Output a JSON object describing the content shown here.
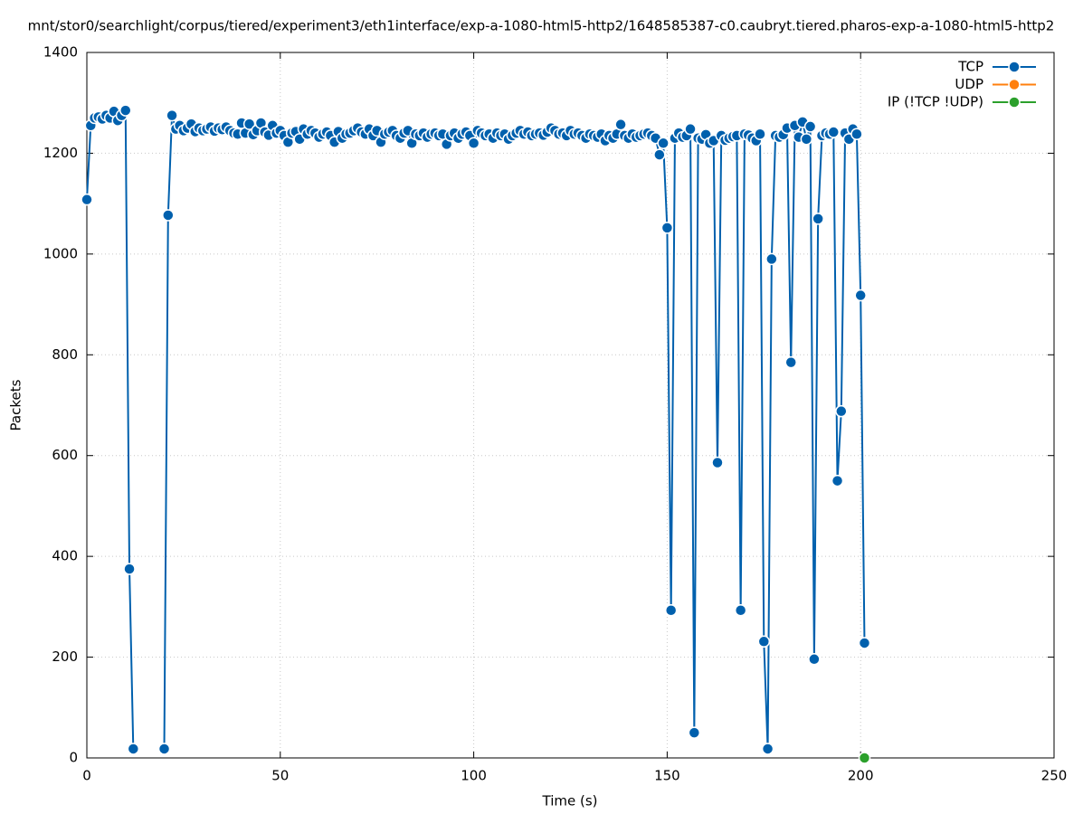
{
  "chart_data": {
    "type": "line",
    "title": "mnt/stor0/searchlight/corpus/tiered/experiment3/eth1interface/exp-a-1080-html5-http2/1648585387-c0.caubryt.tiered.pharos-exp-a-1080-html5-http2",
    "xlabel": "Time (s)",
    "ylabel": "Packets",
    "xlim": [
      0,
      250
    ],
    "xticks": [
      0,
      50,
      100,
      150,
      200,
      250
    ],
    "ylim": [
      0,
      1400
    ],
    "yticks": [
      0,
      200,
      400,
      600,
      800,
      1000,
      1200,
      1400
    ],
    "grid": true,
    "legend": "top-right",
    "series": [
      {
        "name": "TCP",
        "color": "#0060ad",
        "x": [
          0,
          1,
          2,
          3,
          4,
          5,
          6,
          7,
          8,
          9,
          10,
          11,
          12,
          13,
          14,
          15,
          16,
          17,
          18,
          19,
          20,
          21,
          22,
          23,
          24,
          25,
          26,
          27,
          28,
          29,
          30,
          31,
          32,
          33,
          34,
          35,
          36,
          37,
          38,
          39,
          40,
          41,
          42,
          43,
          44,
          45,
          46,
          47,
          48,
          49,
          50,
          51,
          52,
          53,
          54,
          55,
          56,
          57,
          58,
          59,
          60,
          61,
          62,
          63,
          64,
          65,
          66,
          67,
          68,
          69,
          70,
          71,
          72,
          73,
          74,
          75,
          76,
          77,
          78,
          79,
          80,
          81,
          82,
          83,
          84,
          85,
          86,
          87,
          88,
          89,
          90,
          91,
          92,
          93,
          94,
          95,
          96,
          97,
          98,
          99,
          100,
          101,
          102,
          103,
          104,
          105,
          106,
          107,
          108,
          109,
          110,
          111,
          112,
          113,
          114,
          115,
          116,
          117,
          118,
          119,
          120,
          121,
          122,
          123,
          124,
          125,
          126,
          127,
          128,
          129,
          130,
          131,
          132,
          133,
          134,
          135,
          136,
          137,
          138,
          139,
          140,
          141,
          142,
          143,
          144,
          145,
          146,
          147,
          148,
          149,
          150,
          151,
          152,
          153,
          154,
          155,
          156,
          157,
          158,
          159,
          160,
          161,
          162,
          163,
          164,
          165,
          166,
          167,
          168,
          169,
          170,
          171,
          172,
          173,
          174,
          175,
          176,
          177,
          178,
          179,
          180,
          181,
          182,
          183,
          184,
          185,
          186,
          187,
          188,
          189,
          190,
          191,
          192,
          193,
          194,
          195,
          196,
          197,
          198,
          199,
          200,
          201
        ],
        "values": [
          1108,
          1255,
          1270,
          1272,
          1268,
          1275,
          1270,
          1283,
          1265,
          1275,
          1285,
          375,
          18,
          null,
          null,
          null,
          null,
          null,
          null,
          null,
          18,
          1077,
          1275,
          1248,
          1255,
          1245,
          1250,
          1258,
          1243,
          1250,
          1245,
          1248,
          1252,
          1244,
          1250,
          1247,
          1252,
          1245,
          1240,
          1238,
          1260,
          1240,
          1258,
          1237,
          1245,
          1260,
          1242,
          1236,
          1255,
          1240,
          1245,
          1235,
          1222,
          1240,
          1243,
          1228,
          1248,
          1238,
          1245,
          1240,
          1232,
          1238,
          1242,
          1235,
          1222,
          1243,
          1230,
          1238,
          1240,
          1245,
          1250,
          1242,
          1238,
          1248,
          1235,
          1245,
          1222,
          1238,
          1242,
          1245,
          1235,
          1230,
          1240,
          1245,
          1220,
          1238,
          1235,
          1240,
          1232,
          1238,
          1240,
          1235,
          1238,
          1218,
          1235,
          1240,
          1230,
          1238,
          1242,
          1235,
          1220,
          1245,
          1240,
          1235,
          1238,
          1230,
          1240,
          1235,
          1238,
          1228,
          1235,
          1240,
          1245,
          1238,
          1242,
          1235,
          1238,
          1240,
          1236,
          1242,
          1250,
          1245,
          1238,
          1240,
          1235,
          1245,
          1238,
          1240,
          1235,
          1230,
          1238,
          1235,
          1232,
          1238,
          1225,
          1235,
          1230,
          1238,
          1257,
          1235,
          1230,
          1238,
          1232,
          1235,
          1238,
          1240,
          1235,
          1230,
          1197,
          1220,
          1052,
          293,
          1230,
          1240,
          1232,
          1235,
          1248,
          50,
          1230,
          1228,
          1237,
          1220,
          1225,
          586,
          1235,
          1226,
          1230,
          1233,
          1235,
          293,
          1238,
          1236,
          1230,
          1225,
          1238,
          231,
          18,
          990,
          1235,
          1232,
          1237,
          1250,
          785,
          1255,
          1232,
          1262,
          1228,
          1253,
          196,
          1070,
          1235,
          1240,
          1238,
          1242,
          550,
          688,
          1240,
          1228,
          1248,
          1238,
          918,
          228
        ]
      },
      {
        "name": "UDP",
        "color": "#ff7f0e",
        "x": [],
        "values": []
      },
      {
        "name": "IP (!TCP  !UDP)",
        "color": "#2ca02c",
        "x": [
          201
        ],
        "values": [
          0
        ]
      }
    ]
  }
}
